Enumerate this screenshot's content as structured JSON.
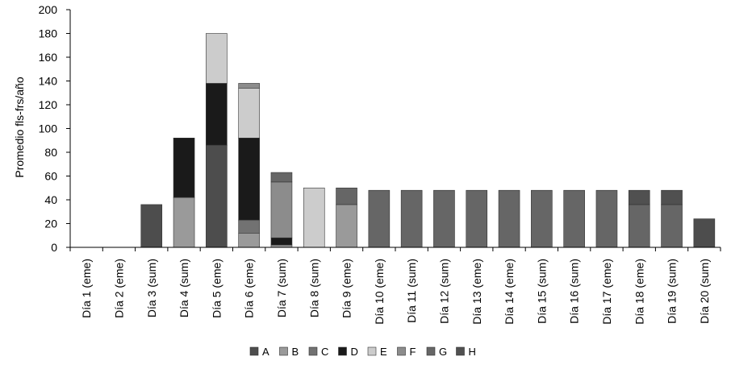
{
  "chart_data": {
    "type": "bar",
    "stacked": true,
    "title": "",
    "xlabel": "",
    "ylabel": "Promedio fls-frs/año",
    "ylim": [
      0,
      200
    ],
    "yticks": [
      0,
      20,
      40,
      60,
      80,
      100,
      120,
      140,
      160,
      180,
      200
    ],
    "grid": false,
    "legend_position": "bottom",
    "categories": [
      "Día 1 (eme)",
      "Día 2 (eme)",
      "Día 3 (sum)",
      "Día 4 (sum)",
      "Día 5 (eme)",
      "Día 6 (eme)",
      "Día 7 (sum)",
      "Día 8 (sum)",
      "Día 9 (eme)",
      "Día 10 (eme)",
      "Día 11 (sum)",
      "Día 12 (sum)",
      "Día 13 (eme)",
      "Día 14 (eme)",
      "Día 15 (sum)",
      "Día 16 (sum)",
      "Día 17 (eme)",
      "Día 18 (eme)",
      "Día 19 (sum)",
      "Día 20 (sum)"
    ],
    "series": [
      {
        "name": "A",
        "color": "#4d4d4d",
        "values": [
          0,
          0,
          36,
          0,
          86,
          0,
          0,
          0,
          0,
          0,
          0,
          0,
          0,
          0,
          0,
          0,
          0,
          0,
          0,
          24
        ]
      },
      {
        "name": "B",
        "color": "#9a9a9a",
        "values": [
          0,
          0,
          0,
          42,
          0,
          12,
          2,
          0,
          36,
          0,
          0,
          0,
          0,
          0,
          0,
          0,
          0,
          0,
          0,
          0
        ]
      },
      {
        "name": "C",
        "color": "#727272",
        "values": [
          0,
          0,
          0,
          0,
          0,
          11,
          0,
          0,
          0,
          0,
          0,
          0,
          0,
          0,
          0,
          0,
          0,
          0,
          0,
          0
        ]
      },
      {
        "name": "D",
        "color": "#1a1a1a",
        "values": [
          0,
          0,
          0,
          50,
          52,
          69,
          6,
          0,
          0,
          0,
          0,
          0,
          0,
          0,
          0,
          0,
          0,
          0,
          0,
          0
        ]
      },
      {
        "name": "E",
        "color": "#cccccc",
        "values": [
          0,
          0,
          0,
          0,
          42,
          42,
          0,
          50,
          0,
          0,
          0,
          0,
          0,
          0,
          0,
          0,
          0,
          0,
          0,
          0
        ]
      },
      {
        "name": "F",
        "color": "#8c8c8c",
        "values": [
          0,
          0,
          0,
          0,
          0,
          4,
          47,
          0,
          0,
          0,
          0,
          0,
          0,
          0,
          0,
          0,
          0,
          0,
          0,
          0
        ]
      },
      {
        "name": "G",
        "color": "#666666",
        "values": [
          0,
          0,
          0,
          0,
          0,
          0,
          8,
          0,
          14,
          48,
          48,
          48,
          48,
          48,
          48,
          48,
          48,
          36,
          36,
          0
        ]
      },
      {
        "name": "H",
        "color": "#505050",
        "values": [
          0,
          0,
          0,
          0,
          0,
          0,
          0,
          0,
          0,
          0,
          0,
          0,
          0,
          0,
          0,
          0,
          0,
          12,
          12,
          0
        ]
      }
    ]
  }
}
